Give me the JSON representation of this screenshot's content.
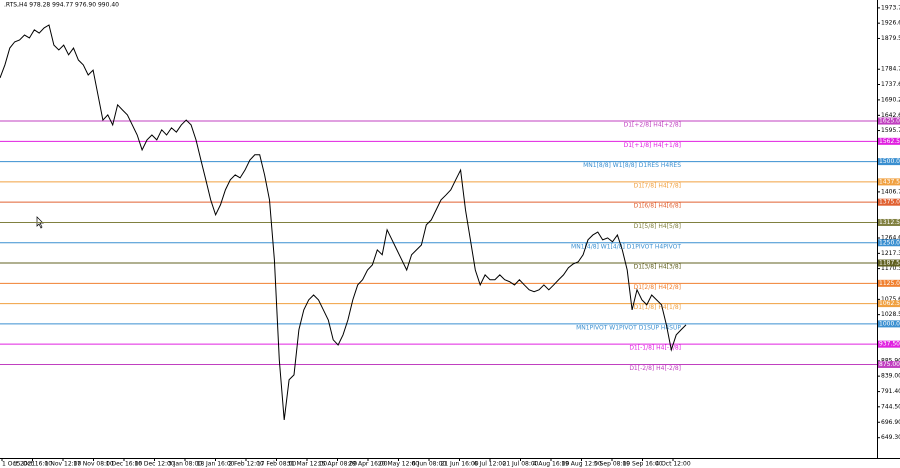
{
  "chart_data": {
    "type": "line",
    "title": ".RTS,H4  978.28 994.77 976.90 990.40",
    "x_labels": [
      "1 Oct 2021",
      "15 Oct 16:00",
      "1 Nov 12:00",
      "17 Nov 08:00",
      "1 Dec 16:00",
      "16 Dec 12:00",
      "3 Jan 08:00",
      "18 Jan 16:00",
      "2 Feb 12:00",
      "17 Feb 08:00",
      "31 Mar 12:00",
      "15 Apr 08:00",
      "29 Apr 16:00",
      "20 May 12:00",
      "6 Jun 08:00",
      "21 Jun 16:00",
      "6 Jul 12:00",
      "21 Jul 08:00",
      "4 Aug 16:00",
      "19 Aug 12:00",
      "5 Sep 08:00",
      "19 Sep 16:00",
      "4 Oct 12:00"
    ],
    "series": [
      {
        "color": "#000000",
        "values": [
          1758,
          1798,
          1850,
          1869,
          1875,
          1890,
          1881,
          1906,
          1896,
          1912,
          1921,
          1859,
          1844,
          1859,
          1829,
          1850,
          1813,
          1798,
          1767,
          1782,
          1705,
          1628,
          1644,
          1613,
          1675,
          1659,
          1644,
          1613,
          1582,
          1536,
          1567,
          1582,
          1567,
          1598,
          1582,
          1604,
          1591,
          1613,
          1628,
          1613,
          1567,
          1505,
          1444,
          1382,
          1336,
          1367,
          1413,
          1444,
          1459,
          1450,
          1474,
          1505,
          1521,
          1521,
          1459,
          1382,
          1197,
          889,
          704,
          828,
          843,
          982,
          1043,
          1074,
          1089,
          1074,
          1043,
          1012,
          951,
          935,
          966,
          1012,
          1074,
          1120,
          1136,
          1166,
          1182,
          1228,
          1213,
          1290,
          1259,
          1228,
          1197,
          1166,
          1213,
          1228,
          1243,
          1305,
          1320,
          1351,
          1382,
          1397,
          1413,
          1444,
          1474,
          1351,
          1259,
          1166,
          1120,
          1151,
          1136,
          1136,
          1151,
          1136,
          1130,
          1120,
          1136,
          1120,
          1105,
          1099,
          1105,
          1120,
          1105,
          1120,
          1136,
          1151,
          1173,
          1185,
          1191,
          1213,
          1259,
          1274,
          1283,
          1259,
          1265,
          1253,
          1274,
          1228,
          1166,
          1043,
          1105,
          1074,
          1059,
          1089,
          1074,
          1059,
          997,
          920,
          966,
          982,
          997
        ]
      }
    ],
    "ylim": [
      596,
      1998
    ],
    "yticks": [
      {
        "value": 1973.7,
        "label": "1973.70"
      },
      {
        "value": 1926.6,
        "label": "1926.60"
      },
      {
        "value": 1879.5,
        "label": "1879.50"
      },
      {
        "value": 1784.7,
        "label": "1784.70"
      },
      {
        "value": 1737.6,
        "label": "1737.60"
      },
      {
        "value": 1690.2,
        "label": "1690.20"
      },
      {
        "value": 1642.6,
        "label": "1642.60"
      },
      {
        "value": 1595.7,
        "label": "1595.70"
      },
      {
        "value": 1406.7,
        "label": "1406.70"
      },
      {
        "value": 1264.6,
        "label": "1264.60"
      },
      {
        "value": 1217.3,
        "label": "1217.30"
      },
      {
        "value": 1170.3,
        "label": "1170.30"
      },
      {
        "value": 1075.6,
        "label": "1075.60"
      },
      {
        "value": 1028.5,
        "label": "1028.50"
      },
      {
        "value": 885.9,
        "label": "885.90"
      },
      {
        "value": 839,
        "label": "839.00"
      },
      {
        "value": 791.4,
        "label": "791.40"
      },
      {
        "value": 744.5,
        "label": "744.50"
      },
      {
        "value": 696.9,
        "label": "696.90"
      },
      {
        "value": 649.3,
        "label": "649.30"
      }
    ],
    "levels": [
      {
        "value": 1625,
        "label": "1625.00",
        "text": "D1[+2/8] H4[+2/8]",
        "color": "#c040c0"
      },
      {
        "value": 1562.5,
        "label": "1562.50",
        "text": "D1[+1/8] H4[+1/8]",
        "color": "#e020e0"
      },
      {
        "value": 1500,
        "label": "1500.00",
        "text": "MN1[8/8] W1[8/8] D1RES H4RES",
        "color": "#3a8fd0"
      },
      {
        "value": 1437.5,
        "label": "1437.50",
        "text": "D1[7/8] H4[7/8]",
        "color": "#f0a040"
      },
      {
        "value": 1375,
        "label": "1375.00",
        "text": "D1[6/8] H4[6/8]",
        "color": "#e06030"
      },
      {
        "value": 1312.5,
        "label": "1312.50",
        "text": "D1[5/8] H4[5/8]",
        "color": "#808040"
      },
      {
        "value": 1250,
        "label": "1250.00",
        "text": "MN1[4/8] W1[4/8] D1PIVOT H4PIVOT",
        "color": "#3a8fd0"
      },
      {
        "value": 1187.5,
        "label": "1187.50",
        "text": "D1[3/8] H4[3/8]",
        "color": "#606020"
      },
      {
        "value": 1125,
        "label": "1125.00",
        "text": "D1[2/8] H4[2/8]",
        "color": "#f08030"
      },
      {
        "value": 1062.5,
        "label": "1062.50",
        "text": "D1[1/8] H4[1/8]",
        "color": "#f0a040"
      },
      {
        "value": 1000,
        "label": "1000.00",
        "text": "MN1PIVOT W1PIVOT D1SUP H4SUP",
        "color": "#3a8fd0"
      },
      {
        "value": 937.5,
        "label": "937.50",
        "text": "D1[-1/8] H4[-1/8]",
        "color": "#e020e0"
      },
      {
        "value": 875,
        "label": "875.00",
        "text": "D1[-2/8] H4[-2/8]",
        "color": "#c040c0"
      }
    ]
  }
}
